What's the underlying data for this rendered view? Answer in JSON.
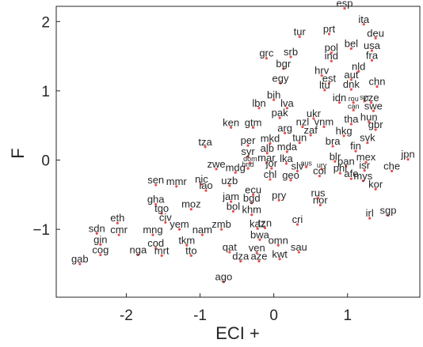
{
  "chart_data": {
    "type": "scatter",
    "xlabel": "ECI +",
    "ylabel": "F",
    "xlim": [
      -2.95,
      1.98
    ],
    "ylim": [
      -1.98,
      2.22
    ],
    "xticks": [
      -2,
      -1,
      0,
      1
    ],
    "yticks": [
      2,
      1,
      0,
      -1
    ],
    "xtick_labels": [
      "-2",
      "-1",
      "0",
      "1"
    ],
    "ytick_labels": [
      "2",
      "1",
      "0",
      "−1"
    ],
    "grid": false,
    "marker_color": "#e8514a",
    "points": [
      {
        "label": "esp",
        "x": 0.96,
        "y": 2.19
      },
      {
        "label": "ita",
        "x": 1.22,
        "y": 1.96
      },
      {
        "label": "tur",
        "x": 0.35,
        "y": 1.78
      },
      {
        "label": "prt",
        "x": 0.75,
        "y": 1.82
      },
      {
        "label": "deu",
        "x": 1.38,
        "y": 1.76
      },
      {
        "label": "bel",
        "x": 1.05,
        "y": 1.61
      },
      {
        "label": "usa",
        "x": 1.33,
        "y": 1.58
      },
      {
        "label": "pol",
        "x": 0.78,
        "y": 1.55
      },
      {
        "label": "fra",
        "x": 1.33,
        "y": 1.44
      },
      {
        "label": "grc",
        "x": -0.1,
        "y": 1.47
      },
      {
        "label": "srb",
        "x": 0.23,
        "y": 1.49
      },
      {
        "label": "ind",
        "x": 0.78,
        "y": 1.43
      },
      {
        "label": "bgr",
        "x": 0.13,
        "y": 1.32
      },
      {
        "label": "nld",
        "x": 1.15,
        "y": 1.28
      },
      {
        "label": "hrv",
        "x": 0.65,
        "y": 1.22
      },
      {
        "label": "aut",
        "x": 1.05,
        "y": 1.16
      },
      {
        "label": "egy",
        "x": 0.09,
        "y": 1.11
      },
      {
        "label": "est",
        "x": 0.75,
        "y": 1.11
      },
      {
        "label": "chn",
        "x": 1.4,
        "y": 1.06
      },
      {
        "label": "ltu",
        "x": 0.69,
        "y": 1.01
      },
      {
        "label": "dnk",
        "x": 1.05,
        "y": 1.02
      },
      {
        "label": "bih",
        "x": 0.0,
        "y": 0.87
      },
      {
        "label": "idn",
        "x": 0.89,
        "y": 0.83
      },
      {
        "label": "rou",
        "x": 1.08,
        "y": 0.83
      },
      {
        "label": "syr",
        "x": 1.23,
        "y": 0.85
      },
      {
        "label": "cze",
        "x": 1.32,
        "y": 0.83
      },
      {
        "label": "lbn",
        "x": -0.2,
        "y": 0.75
      },
      {
        "label": "lva",
        "x": 0.18,
        "y": 0.75
      },
      {
        "label": "can",
        "x": 1.08,
        "y": 0.72
      },
      {
        "label": "swe",
        "x": 1.35,
        "y": 0.71
      },
      {
        "label": "pak",
        "x": 0.08,
        "y": 0.61
      },
      {
        "label": "ukr",
        "x": 0.54,
        "y": 0.6
      },
      {
        "label": "hun",
        "x": 1.29,
        "y": 0.55
      },
      {
        "label": "tha",
        "x": 1.05,
        "y": 0.52
      },
      {
        "label": "ken",
        "x": -0.58,
        "y": 0.47
      },
      {
        "label": "gtm",
        "x": -0.28,
        "y": 0.47
      },
      {
        "label": "nzl",
        "x": 0.39,
        "y": 0.48
      },
      {
        "label": "vnm",
        "x": 0.68,
        "y": 0.48
      },
      {
        "label": "gbr",
        "x": 1.38,
        "y": 0.44
      },
      {
        "label": "arg",
        "x": 0.15,
        "y": 0.39
      },
      {
        "label": "zaf",
        "x": 0.5,
        "y": 0.36
      },
      {
        "label": "hkg",
        "x": 0.95,
        "y": 0.35
      },
      {
        "label": "tun",
        "x": 0.35,
        "y": 0.25
      },
      {
        "label": "svk",
        "x": 1.27,
        "y": 0.25
      },
      {
        "label": "mda",
        "x": 0.18,
        "y": 0.12
      },
      {
        "label": "bra",
        "x": 0.8,
        "y": 0.2
      },
      {
        "label": "fin",
        "x": 1.11,
        "y": 0.13
      },
      {
        "label": "tza",
        "x": -0.93,
        "y": 0.19
      },
      {
        "label": "per",
        "x": -0.35,
        "y": 0.21
      },
      {
        "label": "mkd",
        "x": -0.05,
        "y": 0.24
      },
      {
        "label": "syr",
        "x": -0.35,
        "y": 0.05
      },
      {
        "label": "alb",
        "x": -0.09,
        "y": 0.1
      },
      {
        "label": "mar",
        "x": -0.1,
        "y": -0.04
      },
      {
        "label": "lka",
        "x": 0.17,
        "y": -0.05
      },
      {
        "label": "blr",
        "x": 0.83,
        "y": -0.02
      },
      {
        "label": "jpn",
        "x": 1.82,
        "y": 0.01
      },
      {
        "label": "mex",
        "x": 1.25,
        "y": -0.03
      },
      {
        "label": "dom",
        "x": -0.32,
        "y": -0.04
      },
      {
        "label": "jor",
        "x": -0.03,
        "y": -0.12
      },
      {
        "label": "slv",
        "x": 0.32,
        "y": -0.16
      },
      {
        "label": "aus",
        "x": 0.44,
        "y": -0.1
      },
      {
        "label": "pan",
        "x": 0.98,
        "y": -0.09
      },
      {
        "label": "zwe",
        "x": -0.78,
        "y": -0.13
      },
      {
        "label": "hnd",
        "x": -0.35,
        "y": -0.12
      },
      {
        "label": "mdg",
        "x": -0.52,
        "y": -0.18
      },
      {
        "label": "ury",
        "x": 0.65,
        "y": -0.13
      },
      {
        "label": "isr",
        "x": 1.23,
        "y": -0.15
      },
      {
        "label": "che",
        "x": 1.6,
        "y": -0.16
      },
      {
        "label": "phl",
        "x": 0.9,
        "y": -0.19
      },
      {
        "label": "col",
        "x": 0.62,
        "y": -0.23
      },
      {
        "label": "chl",
        "x": -0.05,
        "y": -0.28
      },
      {
        "label": "geo",
        "x": 0.23,
        "y": -0.29
      },
      {
        "label": "afe",
        "x": 1.05,
        "y": -0.27
      },
      {
        "label": "mys",
        "x": 1.21,
        "y": -0.3
      },
      {
        "label": "sen",
        "x": -1.6,
        "y": -0.36
      },
      {
        "label": "mmr",
        "x": -1.32,
        "y": -0.38
      },
      {
        "label": "nic",
        "x": -0.98,
        "y": -0.35
      },
      {
        "label": "uzb",
        "x": -0.6,
        "y": -0.37
      },
      {
        "label": "lao",
        "x": -0.92,
        "y": -0.44
      },
      {
        "label": "kor",
        "x": 1.38,
        "y": -0.42
      },
      {
        "label": "ecu",
        "x": -0.28,
        "y": -0.5
      },
      {
        "label": "rus",
        "x": 0.6,
        "y": -0.55
      },
      {
        "label": "jam",
        "x": -0.58,
        "y": -0.6
      },
      {
        "label": "pry",
        "x": 0.07,
        "y": -0.58
      },
      {
        "label": "bgd",
        "x": -0.3,
        "y": -0.62
      },
      {
        "label": "nor",
        "x": 0.63,
        "y": -0.65
      },
      {
        "label": "gha",
        "x": -1.6,
        "y": -0.64
      },
      {
        "label": "moz",
        "x": -1.12,
        "y": -0.71
      },
      {
        "label": "bol",
        "x": -0.55,
        "y": -0.74
      },
      {
        "label": "khm",
        "x": -0.3,
        "y": -0.79
      },
      {
        "label": "tgo",
        "x": -1.52,
        "y": -0.77
      },
      {
        "label": "sgp",
        "x": 1.55,
        "y": -0.8
      },
      {
        "label": "irl",
        "x": 1.3,
        "y": -0.84
      },
      {
        "label": "civ",
        "x": -1.47,
        "y": -0.9
      },
      {
        "label": "eth",
        "x": -2.12,
        "y": -0.91
      },
      {
        "label": "cri",
        "x": 0.32,
        "y": -0.93
      },
      {
        "label": "yem",
        "x": -1.28,
        "y": -1.0
      },
      {
        "label": "zmb",
        "x": -0.71,
        "y": -1.0
      },
      {
        "label": "kaz",
        "x": -0.22,
        "y": -0.99
      },
      {
        "label": "tzn",
        "x": -0.12,
        "y": -0.98
      },
      {
        "label": "cmr",
        "x": -2.1,
        "y": -1.08
      },
      {
        "label": "mng",
        "x": -1.64,
        "y": -1.08
      },
      {
        "label": "nam",
        "x": -0.97,
        "y": -1.08
      },
      {
        "label": "sdn",
        "x": -2.4,
        "y": -1.06
      },
      {
        "label": "bwa",
        "x": -0.19,
        "y": -1.15
      },
      {
        "label": "gin",
        "x": -2.35,
        "y": -1.22
      },
      {
        "label": "tkm",
        "x": -1.18,
        "y": -1.23
      },
      {
        "label": "omn",
        "x": 0.06,
        "y": -1.23
      },
      {
        "label": "cod",
        "x": -1.6,
        "y": -1.27
      },
      {
        "label": "sau",
        "x": 0.34,
        "y": -1.33
      },
      {
        "label": "cog",
        "x": -2.35,
        "y": -1.37
      },
      {
        "label": "nga",
        "x": -1.84,
        "y": -1.37
      },
      {
        "label": "mrt",
        "x": -1.52,
        "y": -1.38
      },
      {
        "label": "qat",
        "x": -0.6,
        "y": -1.33
      },
      {
        "label": "tto",
        "x": -1.12,
        "y": -1.38
      },
      {
        "label": "ven",
        "x": -0.23,
        "y": -1.34
      },
      {
        "label": "dza",
        "x": -0.45,
        "y": -1.46
      },
      {
        "label": "aze",
        "x": -0.2,
        "y": -1.46
      },
      {
        "label": "kwt",
        "x": 0.08,
        "y": -1.43
      },
      {
        "label": "gab",
        "x": -2.63,
        "y": -1.5
      },
      {
        "label": "ago",
        "x": -0.68,
        "y": -1.76
      }
    ]
  }
}
